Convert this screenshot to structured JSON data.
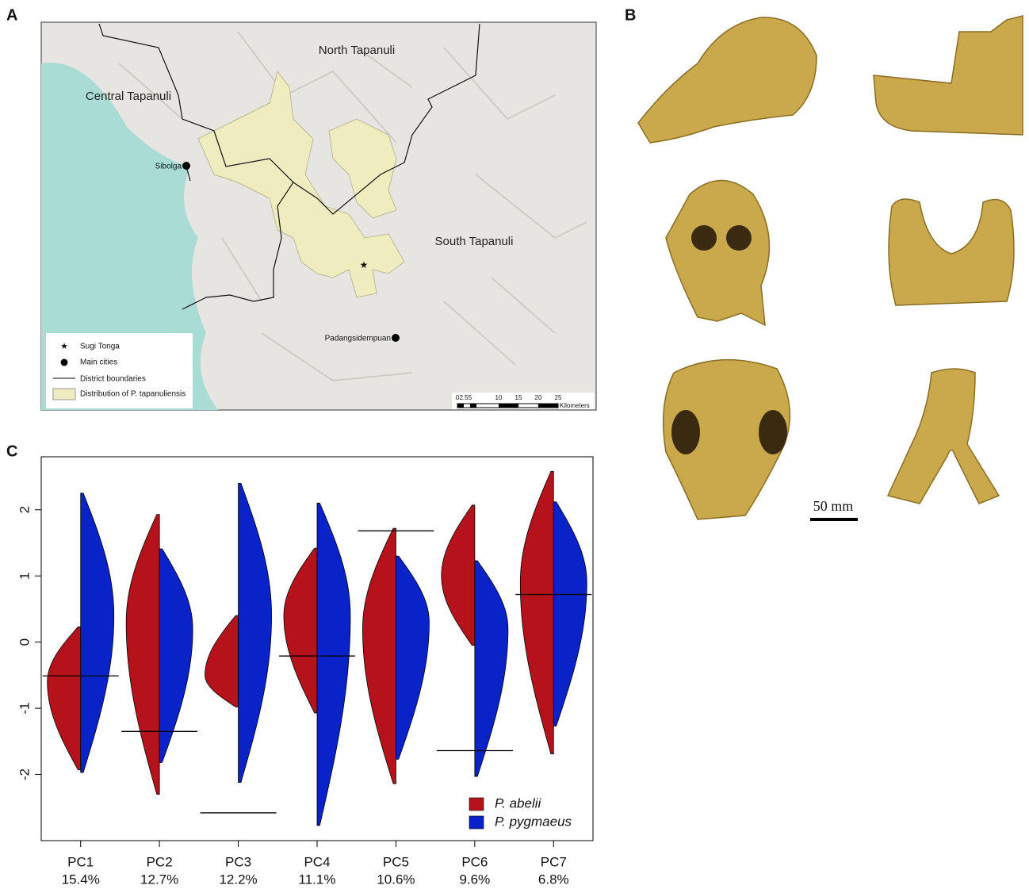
{
  "panels": [
    "A",
    "B",
    "C"
  ],
  "map": {
    "regions": [
      "North Tapanuli",
      "Central Tapanuli",
      "South Tapanuli"
    ],
    "cities": [
      "Sibolga",
      "Padangsidempuan"
    ],
    "legend": [
      "Sugi Tonga",
      "Main cities",
      "District boundaries",
      "Distribution of P. tapanuliensis"
    ],
    "scale_ticks": [
      "0",
      "2.5",
      "5",
      "10",
      "15",
      "20",
      "25"
    ],
    "scale_unit": "Kilometers"
  },
  "skulls": {
    "scale_bar": "50 mm"
  },
  "chart_data": {
    "type": "split-violin",
    "categories": [
      "PC1",
      "PC2",
      "PC3",
      "PC4",
      "PC5",
      "PC6",
      "PC7"
    ],
    "category_sublabels": [
      "15.4%",
      "12.7%",
      "12.2%",
      "11.1%",
      "10.6%",
      "9.6%",
      "6.8%"
    ],
    "series": [
      {
        "name": "P. abelii",
        "color": "#b5121b",
        "min": [
          -1.93,
          -2.3,
          -0.98,
          -1.07,
          -2.14,
          -0.05,
          -1.69
        ],
        "max": [
          0.23,
          1.93,
          0.4,
          1.42,
          1.72,
          2.07,
          2.58
        ],
        "peak": [
          -0.6,
          0.3,
          -0.5,
          0.4,
          0.2,
          1.0,
          0.9
        ]
      },
      {
        "name": "P. pygmaeus",
        "color": "#0a23c8",
        "min": [
          -1.97,
          -1.82,
          -2.12,
          -2.77,
          -1.77,
          -2.03,
          -1.27
        ],
        "max": [
          2.25,
          1.41,
          2.4,
          2.1,
          1.3,
          1.23,
          2.12
        ],
        "peak": [
          0.4,
          0.2,
          0.4,
          0.4,
          0.3,
          0.2,
          0.9
        ]
      }
    ],
    "reference_values": [
      -0.51,
      -1.35,
      -2.58,
      -0.21,
      1.68,
      -1.64,
      0.72
    ],
    "ylim": [
      -3.0,
      2.8
    ],
    "yticks": [
      -2,
      -1,
      0,
      1,
      2
    ],
    "legend_position": "lower right"
  }
}
